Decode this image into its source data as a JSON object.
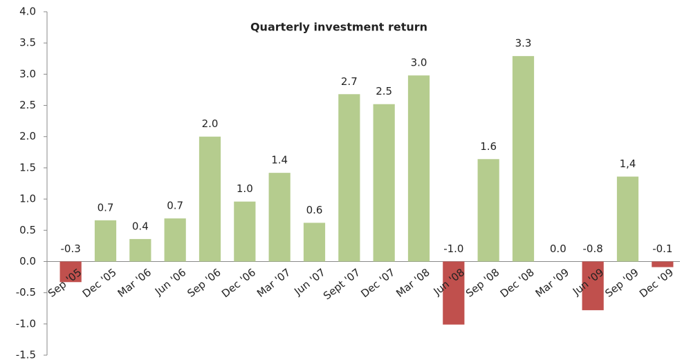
{
  "chart_data": {
    "type": "bar",
    "title": "Quarterly investment return",
    "categories": [
      "Sep '05",
      "Dec '05",
      "Mar '06",
      "Jun '06",
      "Sep '06",
      "Dec '06",
      "Mar '07",
      "Jun '07",
      "Sept '07",
      "Dec '07",
      "Mar '08",
      "Jun '08",
      "Sep '08",
      "Dec '08",
      "Mar '09",
      "Jun '09",
      "Sep '09",
      "Dec '09"
    ],
    "values": [
      -0.33,
      0.66,
      0.36,
      0.69,
      2.0,
      0.96,
      1.42,
      0.62,
      2.68,
      2.52,
      2.98,
      -1.01,
      1.64,
      3.29,
      0,
      -0.78,
      1.36,
      -0.09
    ],
    "value_labels": [
      "-0.3",
      "0.7",
      "0.4",
      "0.7",
      "2.0",
      "1.0",
      "1.4",
      "0.6",
      "2.7",
      "2.5",
      "3.0",
      "-1.0",
      "1.6",
      "3.3",
      "0.0",
      "-0.8",
      "1,4",
      "-0.1"
    ],
    "positive_color": "#b5cc8e",
    "negative_color": "#c0504d",
    "ylim": [
      -1.5,
      4.0
    ],
    "yticks": [
      {
        "value": 4,
        "label": "4.0"
      },
      3.5,
      {
        "value": 3,
        "label": "3.0"
      },
      2.5,
      {
        "value": 2,
        "label": "2.0"
      },
      1.5,
      {
        "value": 1,
        "label": "1.0"
      },
      0.5,
      {
        "value": 0,
        "label": "0.0"
      },
      -0.5,
      {
        "value": -1,
        "label": "-1.0"
      },
      -1.5
    ],
    "grid": false
  }
}
